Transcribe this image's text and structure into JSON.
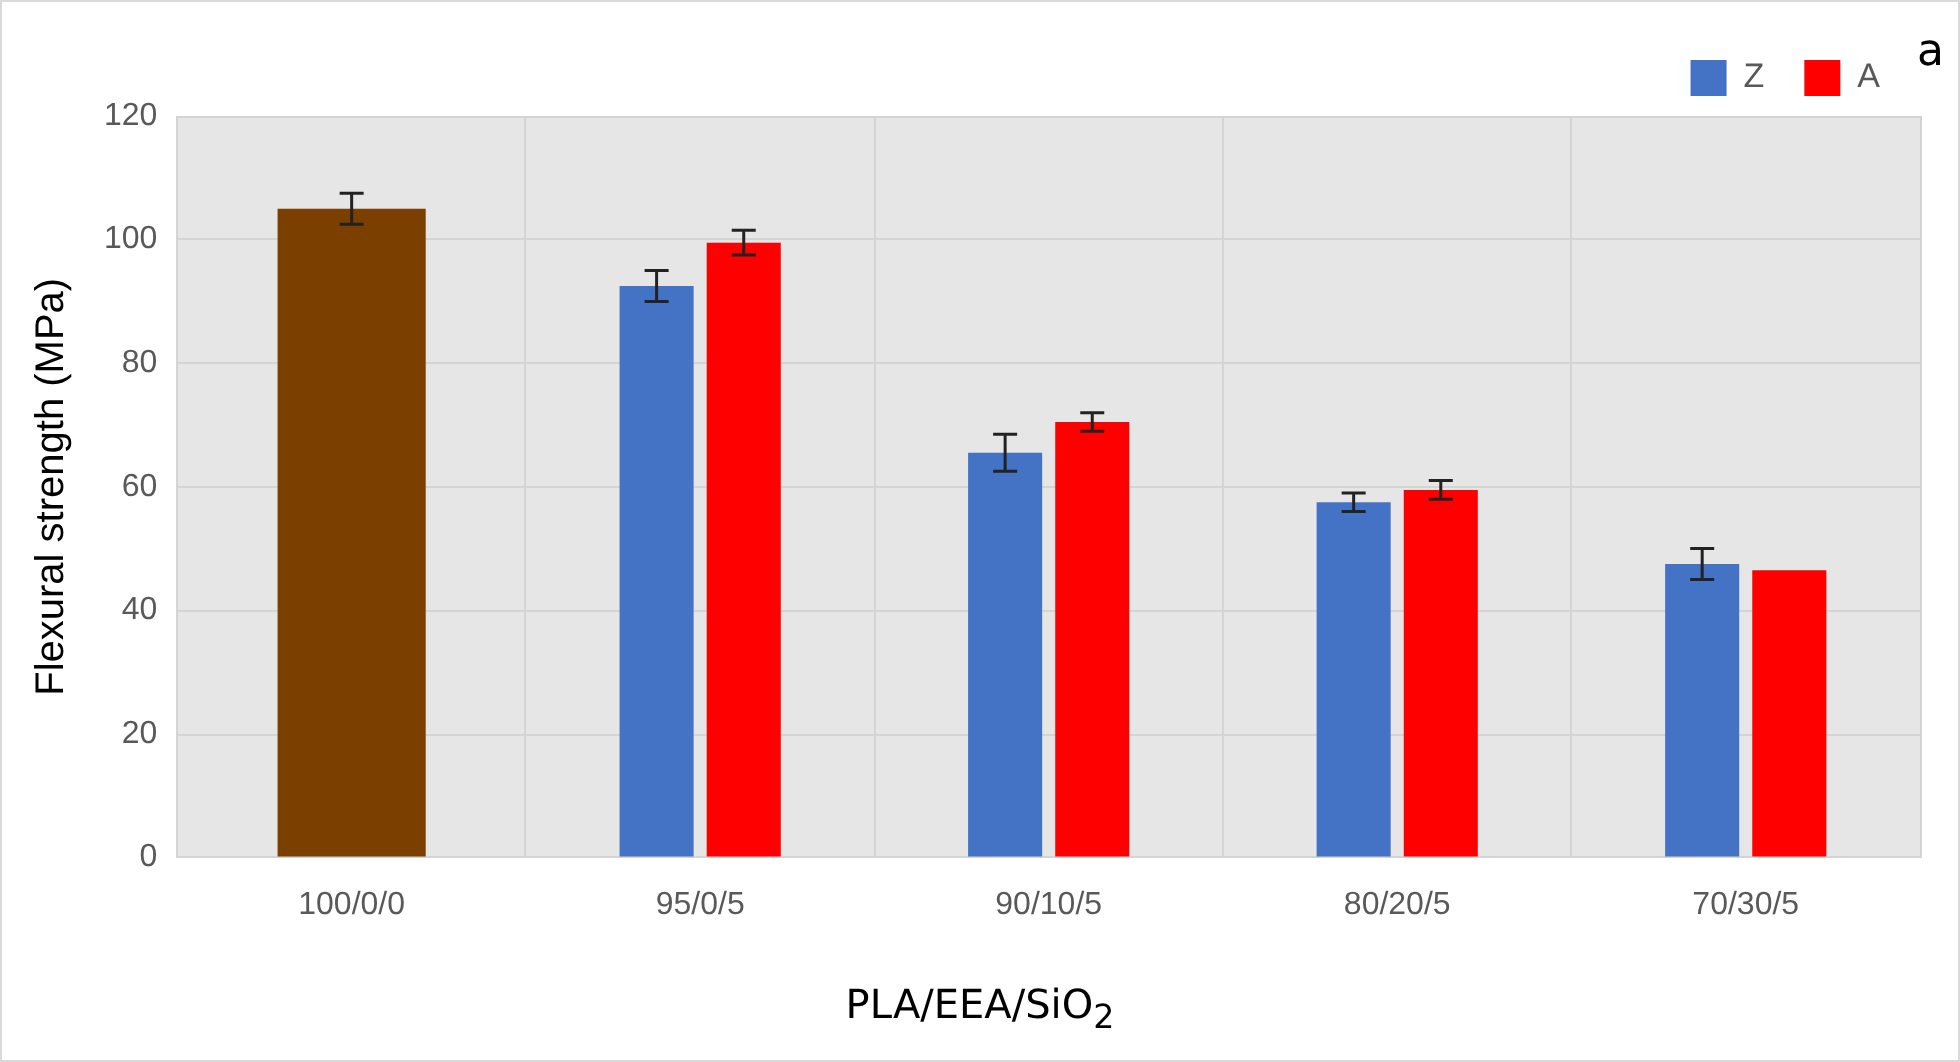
{
  "chart_data": {
    "type": "bar",
    "xlabel": "PLA/EEA/SiO$_{2}$",
    "ylabel": "Flexural strength (MPa)",
    "categories": [
      "100/0/0",
      "95/0/5",
      "90/10/5",
      "80/20/5",
      "70/30/5"
    ],
    "series": [
      {
        "color": "#7b3f00",
        "values": [
          105,
          null,
          null,
          null,
          null
        ],
        "errors": [
          2.5,
          null,
          null,
          null,
          null
        ]
      },
      {
        "name": "Z",
        "color": "#4472c4",
        "values": [
          null,
          92.5,
          65.5,
          57.5,
          47.5
        ],
        "errors": [
          null,
          2.5,
          3,
          1.5,
          2.5
        ]
      },
      {
        "name": "A",
        "color": "#ff0000",
        "values": [
          null,
          99.5,
          70.5,
          59.5,
          46.5
        ],
        "errors": [
          null,
          2,
          1.5,
          1.5,
          null
        ]
      }
    ],
    "ylim": [
      0,
      120
    ],
    "yticks": [
      0,
      20,
      40,
      60,
      80,
      100,
      120
    ],
    "grid": true,
    "legend": "top right",
    "annotations": [
      "a"
    ]
  }
}
